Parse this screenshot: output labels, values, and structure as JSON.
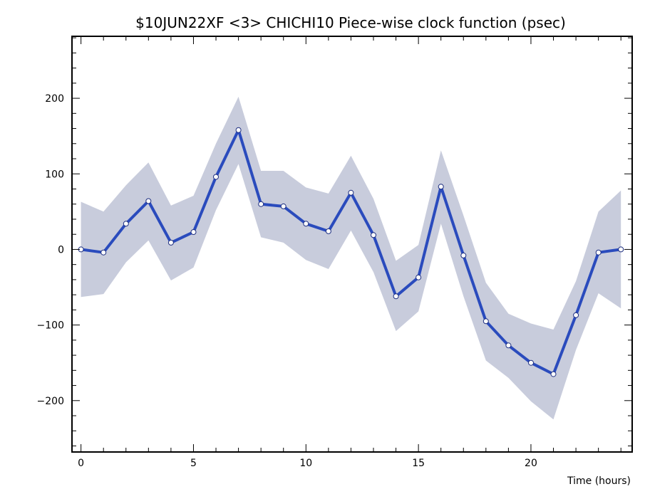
{
  "chart_data": {
    "type": "line",
    "title": "$10JUN22XF <3>  CHICHI10  Piece-wise clock function (psec)",
    "xlabel": "Time (hours)",
    "ylabel": "",
    "xlim": [
      -0.4,
      24.5
    ],
    "ylim": [
      -268,
      282
    ],
    "x_ticks": [
      0,
      5,
      10,
      15,
      20
    ],
    "y_ticks": [
      -200,
      -100,
      0,
      100,
      200
    ],
    "x_tick_labels": [
      "0",
      "5",
      "10",
      "15",
      "20"
    ],
    "y_tick_labels": [
      "−200",
      "−100",
      "0",
      "100",
      "200"
    ],
    "grid": false,
    "series": [
      {
        "x": [
          0,
          1,
          2,
          3,
          4,
          5,
          6,
          7,
          8,
          9,
          10,
          11,
          12,
          13,
          14,
          15,
          16,
          17,
          18,
          19,
          20,
          21,
          22,
          23,
          24
        ],
        "values": [
          0,
          -4,
          34,
          64,
          9,
          23,
          96,
          158,
          60,
          57,
          34,
          24,
          75,
          19,
          -62,
          -37,
          83,
          -8,
          -95,
          -127,
          -150,
          -165,
          -87,
          -4,
          0
        ],
        "upper": [
          63,
          50,
          85,
          115,
          58,
          71,
          140,
          202,
          104,
          104,
          82,
          74,
          124,
          67,
          -15,
          6,
          131,
          45,
          -44,
          -85,
          -98,
          -106,
          -42,
          50,
          78
        ],
        "lower": [
          -63,
          -59,
          -17,
          12,
          -41,
          -24,
          52,
          113,
          16,
          9,
          -14,
          -26,
          25,
          -30,
          -108,
          -82,
          34,
          -62,
          -147,
          -170,
          -201,
          -225,
          -133,
          -58,
          -78
        ],
        "color": "#2a4bbd",
        "band_color": "#c8ccdc"
      }
    ]
  }
}
